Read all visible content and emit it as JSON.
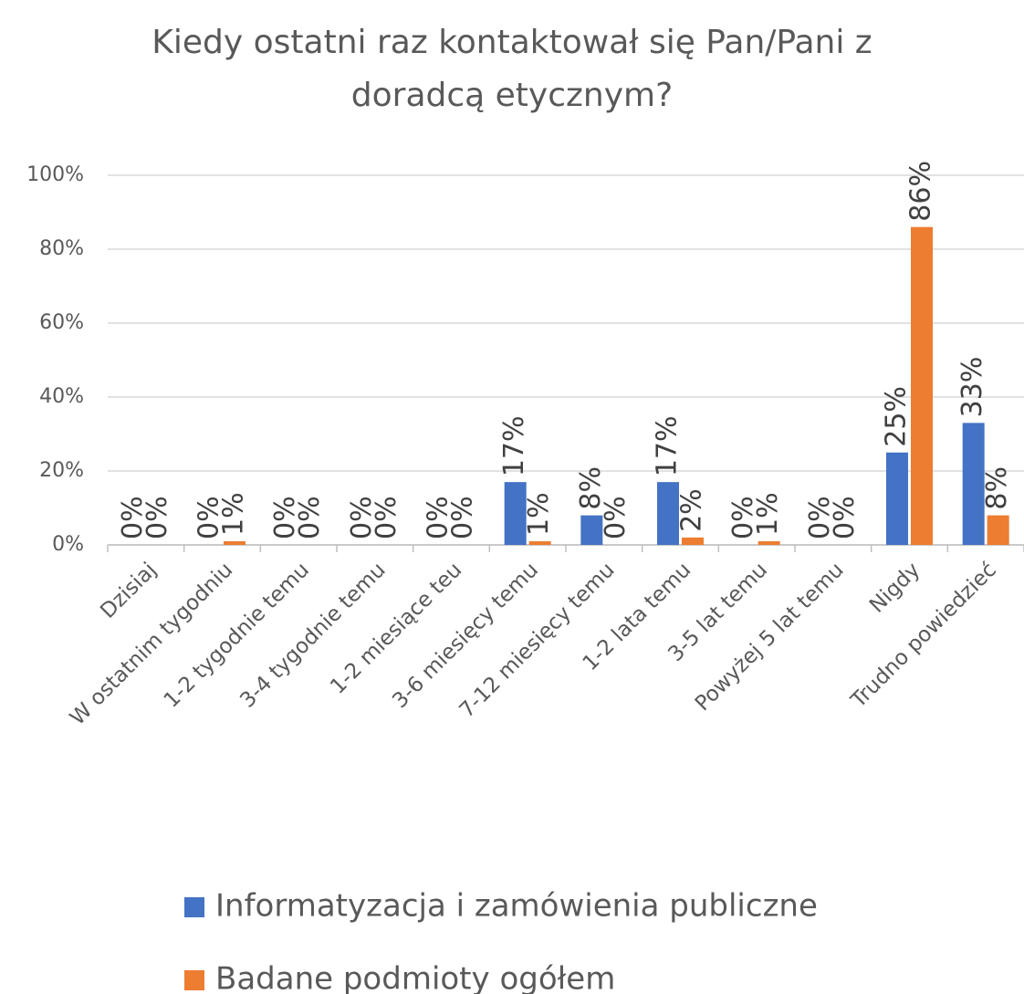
{
  "chart_data": {
    "type": "bar",
    "title": "Kiedy ostatni raz kontaktował się Pan/Pani z doradcą etycznym?",
    "categories": [
      "Dzisiaj",
      "W ostatnim tygodniu",
      "1-2 tygodnie temu",
      "3-4 tygodnie temu",
      "1-2 miesiące teu",
      "3-6 miesięcy temu",
      "7-12 miesięcy temu",
      "1-2 lata temu",
      "3-5 lat temu",
      "Powyżej 5 lat temu",
      "Nigdy",
      "Trudno powiedzieć"
    ],
    "series": [
      {
        "name": "Informatyzacja i zamówienia publiczne",
        "color": "#4472c4",
        "values": [
          0,
          0,
          0,
          0,
          0,
          17,
          8,
          17,
          0,
          0,
          25,
          33
        ],
        "value_labels": [
          "0%",
          "0%",
          "0%",
          "0%",
          "0%",
          "17%",
          "8%",
          "17%",
          "0%",
          "0%",
          "25%",
          "33%"
        ]
      },
      {
        "name": "Badane podmioty ogółem",
        "color": "#ed7d31",
        "values": [
          0,
          1,
          0,
          0,
          0,
          1,
          0,
          2,
          1,
          0,
          86,
          8
        ],
        "value_labels": [
          "0%",
          "1%",
          "0%",
          "0%",
          "0%",
          "1%",
          "0%",
          "2%",
          "1%",
          "0%",
          "86%",
          "8%"
        ]
      }
    ],
    "ylim": [
      0,
      100
    ],
    "yticks": [
      {
        "value": 0,
        "label": "0%"
      },
      {
        "value": 20,
        "label": "20%"
      },
      {
        "value": 40,
        "label": "40%"
      },
      {
        "value": 60,
        "label": "60%"
      },
      {
        "value": 80,
        "label": "80%"
      },
      {
        "value": 100,
        "label": "100%"
      }
    ],
    "grid": true,
    "legend": "bottom"
  }
}
